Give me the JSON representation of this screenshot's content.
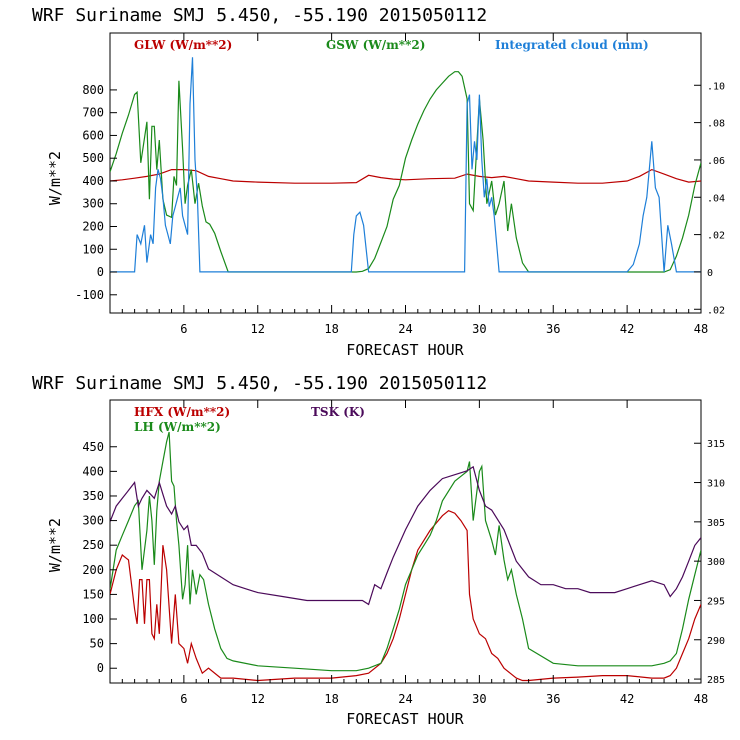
{
  "chart_data": [
    {
      "type": "line",
      "title": "WRF   Suriname SMJ   5.450, -55.190  2015050112",
      "xlabel": "FORECAST HOUR",
      "ylabel": "W/m**2",
      "xlim": [
        0,
        48
      ],
      "ylim": [
        -180,
        1050
      ],
      "xticks": [
        6,
        12,
        18,
        24,
        30,
        36,
        42,
        48
      ],
      "yticks": [
        -100,
        0,
        100,
        200,
        300,
        400,
        500,
        600,
        700,
        800
      ],
      "y2label": "Integrated cloud (mm)",
      "y2lim": [
        -0.022,
        0.128
      ],
      "y2ticks": [
        -0.02,
        0,
        0.02,
        0.04,
        0.06,
        0.08,
        0.1
      ],
      "y2ticklabels": [
        ".02",
        "0",
        ".02",
        ".04",
        ".06",
        ".08",
        ".10"
      ],
      "series": [
        {
          "name": "GLW (W/m**2)",
          "color": "#bb0000",
          "axis": "left",
          "x": [
            0,
            1,
            2,
            3,
            4,
            5,
            6,
            7,
            8,
            9,
            10,
            12,
            15,
            18,
            20,
            21,
            22,
            23,
            24,
            26,
            28,
            29,
            30,
            31,
            32,
            33,
            34,
            36,
            38,
            40,
            42,
            43,
            44,
            45,
            46,
            47,
            48
          ],
          "y": [
            400,
            405,
            412,
            420,
            430,
            450,
            450,
            445,
            420,
            410,
            400,
            395,
            390,
            390,
            393,
            425,
            415,
            408,
            405,
            410,
            412,
            430,
            420,
            415,
            420,
            410,
            400,
            395,
            390,
            390,
            400,
            420,
            450,
            430,
            410,
            395,
            400
          ]
        },
        {
          "name": "GSW (W/m**2)",
          "color": "#1a8a1a",
          "axis": "left",
          "x": [
            0,
            0.5,
            1,
            1.5,
            2,
            2.2,
            2.5,
            3,
            3.2,
            3.4,
            3.6,
            3.8,
            4,
            4.3,
            4.6,
            5,
            5.2,
            5.4,
            5.6,
            5.9,
            6.1,
            6.3,
            6.6,
            6.9,
            7.2,
            7.5,
            7.8,
            8.1,
            8.5,
            9,
            9.6,
            10,
            20,
            20.5,
            21,
            21.5,
            22,
            22.5,
            23,
            23.5,
            24,
            24.5,
            25,
            25.5,
            26,
            26.5,
            27,
            27.5,
            28,
            28.3,
            28.6,
            29,
            29.2,
            29.5,
            30,
            30.3,
            30.6,
            31,
            31.3,
            31.6,
            32,
            32.3,
            32.6,
            33,
            33.5,
            34,
            45,
            45.5,
            46,
            46.5,
            47,
            47.5,
            48
          ],
          "y": [
            440,
            520,
            610,
            690,
            780,
            790,
            480,
            660,
            320,
            640,
            640,
            450,
            580,
            320,
            250,
            240,
            420,
            380,
            840,
            540,
            300,
            380,
            450,
            300,
            390,
            290,
            220,
            210,
            170,
            90,
            0,
            0,
            0,
            3,
            15,
            60,
            130,
            200,
            320,
            380,
            500,
            580,
            650,
            710,
            760,
            800,
            830,
            860,
            880,
            880,
            860,
            760,
            300,
            270,
            760,
            580,
            300,
            400,
            250,
            300,
            400,
            180,
            300,
            150,
            40,
            0,
            0,
            10,
            70,
            150,
            250,
            380,
            480
          ]
        }
      ],
      "cloud_series": {
        "name": "Integrated cloud (mm)",
        "color": "#1e7fd8",
        "axis": "right",
        "x": [
          0,
          2,
          2.2,
          2.5,
          2.8,
          3,
          3.3,
          3.5,
          3.7,
          3.9,
          4.1,
          4.3,
          4.5,
          4.7,
          4.9,
          5.1,
          5.3,
          5.5,
          5.7,
          5.9,
          6.1,
          6.3,
          6.5,
          6.7,
          6.9,
          7.1,
          7.3,
          7.6,
          8,
          19.6,
          19.8,
          20,
          20.3,
          20.6,
          21,
          21.2,
          21.6,
          22,
          28.8,
          29,
          29.2,
          29.4,
          29.6,
          29.8,
          30,
          30.2,
          30.4,
          30.6,
          30.8,
          31,
          31.2,
          31.6,
          32,
          42,
          42.5,
          43,
          43.3,
          43.6,
          44,
          44.3,
          44.6,
          45,
          45.3,
          45.6,
          46,
          48
        ],
        "y": [
          0,
          0,
          0.02,
          0.015,
          0.025,
          0.005,
          0.02,
          0.015,
          0.045,
          0.055,
          0.05,
          0.04,
          0.025,
          0.02,
          0.015,
          0.03,
          0.035,
          0.04,
          0.045,
          0.03,
          0.025,
          0.02,
          0.09,
          0.115,
          0.06,
          0.04,
          0,
          0,
          0,
          0,
          0.02,
          0.03,
          0.032,
          0.025,
          0,
          0,
          0,
          0,
          0,
          0.09,
          0.095,
          0.055,
          0.07,
          0.06,
          0.095,
          0.06,
          0.04,
          0.05,
          0.035,
          0.04,
          0.03,
          0,
          0,
          0,
          0.004,
          0.015,
          0.03,
          0.04,
          0.07,
          0.045,
          0.04,
          0,
          0.025,
          0.015,
          0,
          0
        ]
      },
      "legend": [
        {
          "label": "GLW (W/m**2)",
          "color": "#bb0000"
        },
        {
          "label": "GSW (W/m**2)",
          "color": "#1a8a1a"
        },
        {
          "label": "Integrated cloud (mm)",
          "color": "#1e7fd8"
        }
      ]
    },
    {
      "type": "line",
      "title": "WRF   Suriname SMJ   5.450, -55.190  2015050112",
      "xlabel": "FORECAST HOUR",
      "ylabel": "W/m**2",
      "xlim": [
        0,
        48
      ],
      "ylim": [
        -30,
        545
      ],
      "xticks": [
        6,
        12,
        18,
        24,
        30,
        36,
        42,
        48
      ],
      "yticks": [
        0,
        50,
        100,
        150,
        200,
        250,
        300,
        350,
        400,
        450
      ],
      "y2label": "TSK (K)",
      "y2lim": [
        284.5,
        320.5
      ],
      "y2ticks": [
        285,
        290,
        295,
        300,
        305,
        310,
        315
      ],
      "series": [
        {
          "name": "HFX (W/m**2)",
          "color": "#bb0000",
          "axis": "left",
          "x": [
            0,
            0.5,
            1,
            1.5,
            2,
            2.2,
            2.4,
            2.6,
            2.8,
            3,
            3.2,
            3.4,
            3.6,
            3.8,
            4,
            4.3,
            4.6,
            5,
            5.3,
            5.6,
            6,
            6.3,
            6.6,
            7,
            7.5,
            8,
            9,
            10,
            12,
            15,
            18,
            20,
            21,
            22,
            22.5,
            23,
            23.5,
            24,
            24.5,
            25,
            26,
            27,
            27.5,
            28,
            28.5,
            29,
            29.2,
            29.5,
            30,
            30.5,
            31,
            31.5,
            32,
            32.5,
            33,
            33.5,
            34,
            36,
            38,
            40,
            42,
            44,
            45,
            45.5,
            46,
            46.5,
            47,
            47.5,
            48
          ],
          "y": [
            150,
            200,
            230,
            220,
            120,
            90,
            180,
            180,
            90,
            180,
            180,
            70,
            60,
            130,
            70,
            250,
            200,
            50,
            150,
            50,
            40,
            10,
            50,
            20,
            -10,
            0,
            -20,
            -20,
            -25,
            -20,
            -20,
            -15,
            -10,
            10,
            30,
            60,
            100,
            150,
            200,
            240,
            280,
            310,
            320,
            315,
            300,
            280,
            150,
            100,
            70,
            60,
            30,
            20,
            0,
            -10,
            -20,
            -25,
            -25,
            -20,
            -18,
            -15,
            -15,
            -20,
            -20,
            -15,
            0,
            30,
            60,
            100,
            130
          ]
        },
        {
          "name": "LH (W/m**2)",
          "color": "#1a8a1a",
          "axis": "left",
          "x": [
            0,
            0.5,
            1,
            1.5,
            2,
            2.3,
            2.6,
            3,
            3.2,
            3.4,
            3.6,
            3.8,
            4,
            4.3,
            4.6,
            4.8,
            5,
            5.2,
            5.4,
            5.6,
            5.9,
            6.1,
            6.3,
            6.5,
            6.7,
            7,
            7.3,
            7.6,
            8,
            8.5,
            9,
            9.5,
            10,
            12,
            15,
            18,
            20,
            21,
            22,
            22.5,
            23,
            23.5,
            24,
            24.5,
            25,
            25.5,
            26,
            26.5,
            27,
            28,
            28.5,
            29,
            29.2,
            29.5,
            30,
            30.2,
            30.5,
            31,
            31.3,
            31.6,
            32,
            32.3,
            32.6,
            33,
            33.5,
            34,
            36,
            38,
            40,
            42,
            44,
            45,
            45.5,
            46,
            46.5,
            47,
            47.5,
            48
          ],
          "y": [
            160,
            240,
            270,
            300,
            330,
            340,
            200,
            280,
            350,
            300,
            210,
            320,
            380,
            420,
            460,
            480,
            380,
            370,
            300,
            250,
            140,
            170,
            250,
            130,
            200,
            150,
            190,
            180,
            130,
            80,
            40,
            20,
            15,
            5,
            0,
            -5,
            -5,
            0,
            10,
            40,
            80,
            120,
            170,
            200,
            230,
            250,
            270,
            300,
            340,
            380,
            390,
            400,
            420,
            300,
            400,
            410,
            300,
            260,
            230,
            290,
            220,
            180,
            200,
            150,
            100,
            40,
            10,
            5,
            5,
            5,
            5,
            10,
            15,
            30,
            80,
            140,
            190,
            240
          ],
          "extra": "spike"
        },
        {
          "name": "TSK (K)",
          "color": "#4b0a5a",
          "axis": "right",
          "x": [
            0,
            0.5,
            1,
            1.5,
            2,
            2.3,
            2.6,
            3,
            3.3,
            3.6,
            4,
            4.3,
            4.6,
            5,
            5.3,
            5.6,
            6,
            6.3,
            6.6,
            7,
            7.5,
            8,
            9,
            10,
            11,
            12,
            14,
            16,
            18,
            20,
            20.5,
            21,
            21.5,
            22,
            22.5,
            23,
            24,
            25,
            26,
            27,
            28,
            29,
            29.5,
            30,
            30.5,
            31,
            32,
            33,
            34,
            35,
            36,
            37,
            38,
            39,
            40,
            41,
            42,
            43,
            44,
            45,
            45.5,
            46,
            46.5,
            47,
            47.5,
            48
          ],
          "y": [
            305,
            307,
            308,
            309,
            310,
            307,
            308,
            309,
            308.5,
            308,
            310,
            308.5,
            307,
            306,
            307,
            305,
            304,
            304.5,
            302,
            302,
            301,
            299,
            298,
            297,
            296.5,
            296,
            295.5,
            295,
            295,
            295,
            295,
            294.5,
            297,
            296.5,
            298.5,
            300.5,
            304,
            307,
            309,
            310.5,
            311,
            311.5,
            312,
            309,
            307,
            306.5,
            304,
            300,
            298,
            297,
            297,
            296.5,
            296.5,
            296,
            296,
            296,
            296.5,
            297,
            297.5,
            297,
            295.5,
            296.5,
            298,
            300,
            302,
            303
          ]
        }
      ],
      "legend": [
        {
          "label": "HFX (W/m**2)",
          "color": "#bb0000"
        },
        {
          "label": "LH  (W/m**2)",
          "color": "#1a8a1a"
        },
        {
          "label": "TSK (K)",
          "color": "#4b0a5a"
        }
      ]
    }
  ]
}
